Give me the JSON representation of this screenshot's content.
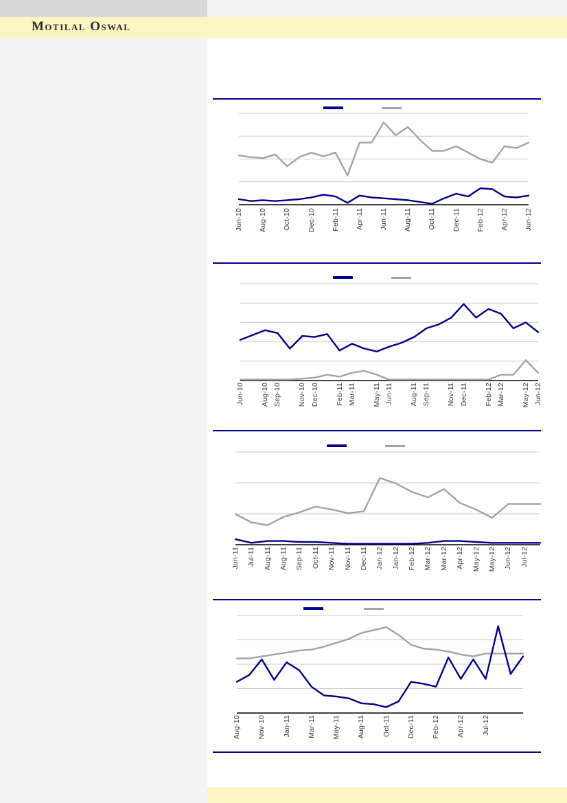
{
  "header": {
    "logo_text": "Motilal Oswal"
  },
  "colors": {
    "navy": "#00008B",
    "gray": "#A3A3A3",
    "banner_yellow": "#FCF5C4",
    "top_bar_gray": "#D8D8D8",
    "left_panel_gray": "#F4F4F4",
    "gridline": "#C9C9C9",
    "axis": "#000000",
    "tick_text": "#3A3A3A"
  },
  "chart_data": [
    {
      "type": "line",
      "title": "",
      "xlabel": "",
      "ylabel": "",
      "grid": true,
      "ylim": [
        0,
        100
      ],
      "y_tick_labels_visible": false,
      "legend": {
        "position": "top",
        "labels_visible": false,
        "swatches": [
          "navy",
          "gray"
        ]
      },
      "categories": [
        "Jun-10",
        "Aug-10",
        "Oct-10",
        "Dec-10",
        "Feb-11",
        "Apr-11",
        "Jun-11",
        "Aug-11",
        "Oct-11",
        "Dec-11",
        "Feb-12",
        "Apr-12",
        "Jun-12"
      ],
      "series": [
        {
          "name": "gray-series",
          "color": "#A3A3A3",
          "values": [
            54,
            52,
            51,
            55,
            42,
            52,
            57,
            53,
            57,
            32,
            68,
            68,
            90,
            76,
            85,
            71,
            59,
            59,
            64,
            57,
            50,
            46,
            64,
            62,
            68
          ]
        },
        {
          "name": "navy-series",
          "color": "#00008B",
          "values": [
            6,
            4,
            5,
            4,
            5,
            6,
            8,
            11,
            9,
            2,
            10,
            8,
            7,
            6,
            5,
            3,
            1,
            7,
            12,
            9,
            18,
            17,
            9,
            8,
            10
          ]
        }
      ]
    },
    {
      "type": "line",
      "title": "",
      "xlabel": "",
      "ylabel": "",
      "grid": true,
      "ylim": [
        0,
        100
      ],
      "y_tick_labels_visible": false,
      "legend": {
        "position": "top",
        "labels_visible": false,
        "swatches": [
          "navy",
          "gray"
        ]
      },
      "categories": [
        "Jun-10",
        "Aug-10",
        "Sep-10",
        "Nov-10",
        "Dec-10",
        "Feb-11",
        "Mar-11",
        "May-11",
        "Jun-11",
        "Aug-11",
        "Sep-11",
        "Nov-11",
        "Dec-11",
        "Feb-12",
        "Mar-12",
        "May-12",
        "Jun-12"
      ],
      "series": [
        {
          "name": "gray-series",
          "color": "#A3A3A3",
          "values": [
            1,
            1,
            1,
            1,
            1,
            2,
            3,
            6,
            4,
            8,
            10,
            6,
            1,
            1,
            1,
            1,
            1,
            1,
            1,
            1,
            1,
            6,
            6,
            21,
            8
          ]
        },
        {
          "name": "navy-series",
          "color": "#00008B",
          "values": [
            42,
            47,
            52,
            49,
            33,
            46,
            45,
            48,
            31,
            38,
            33,
            30,
            35,
            39,
            45,
            54,
            58,
            65,
            79,
            65,
            74,
            69,
            54,
            60,
            50
          ]
        }
      ]
    },
    {
      "type": "line",
      "title": "",
      "xlabel": "",
      "ylabel": "",
      "grid": true,
      "ylim": [
        0,
        100
      ],
      "y_tick_labels_visible": false,
      "legend": {
        "position": "top",
        "labels_visible": false,
        "swatches": [
          "navy",
          "gray"
        ]
      },
      "categories": [
        "Jun-11",
        "Jul-11",
        "Aug-11",
        "Aug-11",
        "Sep-11",
        "Oct-11",
        "Nov-11",
        "Nov-11",
        "Dec-11",
        "Jan-12",
        "Jan-12",
        "Feb-12",
        "Mar-12",
        "Mar-12",
        "Apr-12",
        "May-12",
        "May-12",
        "Jun-12",
        "Jul-12"
      ],
      "series": [
        {
          "name": "gray-series",
          "color": "#A3A3A3",
          "values": [
            33,
            24,
            21,
            30,
            35,
            41,
            38,
            34,
            36,
            72,
            66,
            57,
            51,
            60,
            45,
            38,
            29,
            44,
            44,
            44
          ]
        },
        {
          "name": "navy-series",
          "color": "#00008B",
          "values": [
            6,
            2,
            4,
            4,
            3,
            3,
            2,
            1,
            1,
            1,
            1,
            1,
            2,
            4,
            4,
            3,
            2,
            2,
            2,
            2
          ]
        }
      ]
    },
    {
      "type": "line",
      "title": "",
      "xlabel": "",
      "ylabel": "",
      "grid": true,
      "ylim": [
        0,
        100
      ],
      "y_tick_labels_visible": false,
      "legend": {
        "position": "top",
        "labels_visible": false,
        "swatches": [
          "navy",
          "gray"
        ]
      },
      "categories": [
        "Aug-10",
        "Nov-10",
        "Jan-11",
        "Mar-11",
        "May-11",
        "Aug-11",
        "Oct-11",
        "Dec-11",
        "Feb-12",
        "Apr-12",
        "Jul-12"
      ],
      "series": [
        {
          "name": "gray-series",
          "color": "#A3A3A3",
          "values": [
            56,
            56,
            58,
            60,
            62,
            64,
            65,
            68,
            72,
            76,
            82,
            85,
            88,
            80,
            70,
            66,
            65,
            63,
            60,
            58,
            61,
            61,
            61,
            61
          ]
        },
        {
          "name": "navy-series",
          "color": "#00008B",
          "values": [
            32,
            39,
            55,
            34,
            52,
            44,
            27,
            18,
            17,
            15,
            10,
            9,
            6,
            12,
            32,
            30,
            27,
            57,
            35,
            55,
            35,
            89,
            40,
            58
          ]
        }
      ]
    }
  ]
}
